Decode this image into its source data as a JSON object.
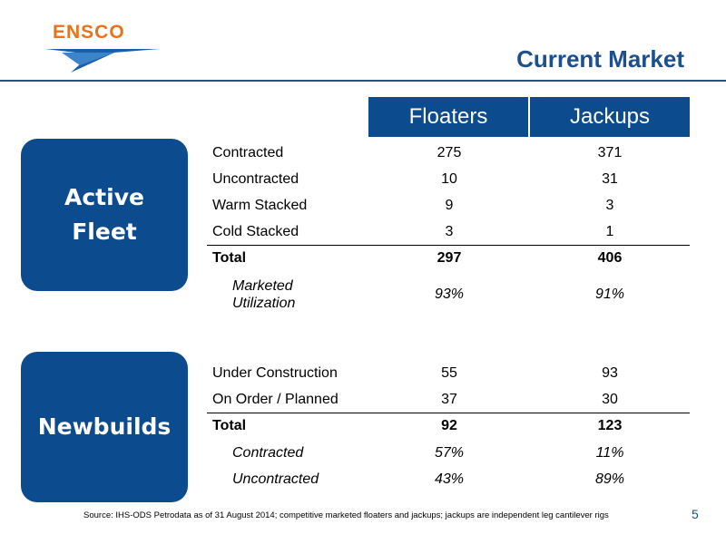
{
  "logo": {
    "text": "ENSCO"
  },
  "title": "Current Market",
  "columns": {
    "floaters": "Floaters",
    "jackups": "Jackups"
  },
  "active_fleet": {
    "label_line1": "Active",
    "label_line2": "Fleet",
    "rows": [
      {
        "label": "Contracted",
        "floaters": "275",
        "jackups": "371"
      },
      {
        "label": "Uncontracted",
        "floaters": "10",
        "jackups": "31"
      },
      {
        "label": "Warm Stacked",
        "floaters": "9",
        "jackups": "3"
      },
      {
        "label": "Cold Stacked",
        "floaters": "3",
        "jackups": "1"
      }
    ],
    "total": {
      "label": "Total",
      "floaters": "297",
      "jackups": "406"
    },
    "utilization": {
      "label_line1": "Marketed",
      "label_line2": "Utilization",
      "floaters": "93%",
      "jackups": "91%"
    }
  },
  "newbuilds": {
    "label": "Newbuilds",
    "rows": [
      {
        "label": "Under Construction",
        "floaters": "55",
        "jackups": "93"
      },
      {
        "label": "On Order / Planned",
        "floaters": "37",
        "jackups": "30"
      }
    ],
    "total": {
      "label": "Total",
      "floaters": "92",
      "jackups": "123"
    },
    "sub_rows": [
      {
        "label": "Contracted",
        "floaters": "57%",
        "jackups": "11%"
      },
      {
        "label": "Uncontracted",
        "floaters": "43%",
        "jackups": "89%"
      }
    ]
  },
  "footer": "Source: IHS-ODS Petrodata as of 31 August 2014; competitive marketed floaters and jackups; jackups are independent leg cantilever rigs",
  "page_number": "5",
  "colors": {
    "navy": "#0c4b8e",
    "title_blue": "#1b4f8f",
    "logo_orange": "#e8731c"
  }
}
